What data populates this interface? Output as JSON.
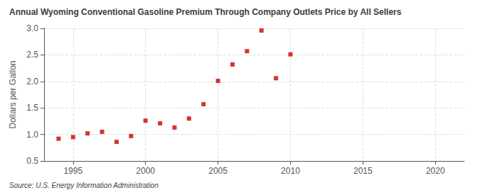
{
  "chart_data": {
    "type": "scatter",
    "title": "Annual Wyoming Conventional Gasoline Premium Through Company Outlets Price by All Sellers",
    "ylabel": "Dollars per Gallon",
    "source": "Source: U.S. Energy Information Administration",
    "x": [
      1994,
      1995,
      1996,
      1997,
      1998,
      1999,
      2000,
      2001,
      2002,
      2003,
      2004,
      2005,
      2006,
      2007,
      2008,
      2009,
      2010
    ],
    "values": [
      0.92,
      0.95,
      1.02,
      1.05,
      0.86,
      0.97,
      1.26,
      1.21,
      1.13,
      1.3,
      1.57,
      2.01,
      2.32,
      2.57,
      2.96,
      2.06,
      2.51
    ],
    "color": "#cc0000",
    "marker": "square",
    "xlim": [
      1993,
      2022
    ],
    "ylim": [
      0.5,
      3.0
    ],
    "xticks": [
      1995,
      2000,
      2005,
      2010,
      2015,
      2020
    ],
    "yticks": [
      0.5,
      {
        "value": 1,
        "label": "1.0"
      },
      1.5,
      {
        "value": 2,
        "label": "2.0"
      },
      2.5,
      {
        "value": 3,
        "label": "3.0"
      }
    ],
    "grid": true
  }
}
